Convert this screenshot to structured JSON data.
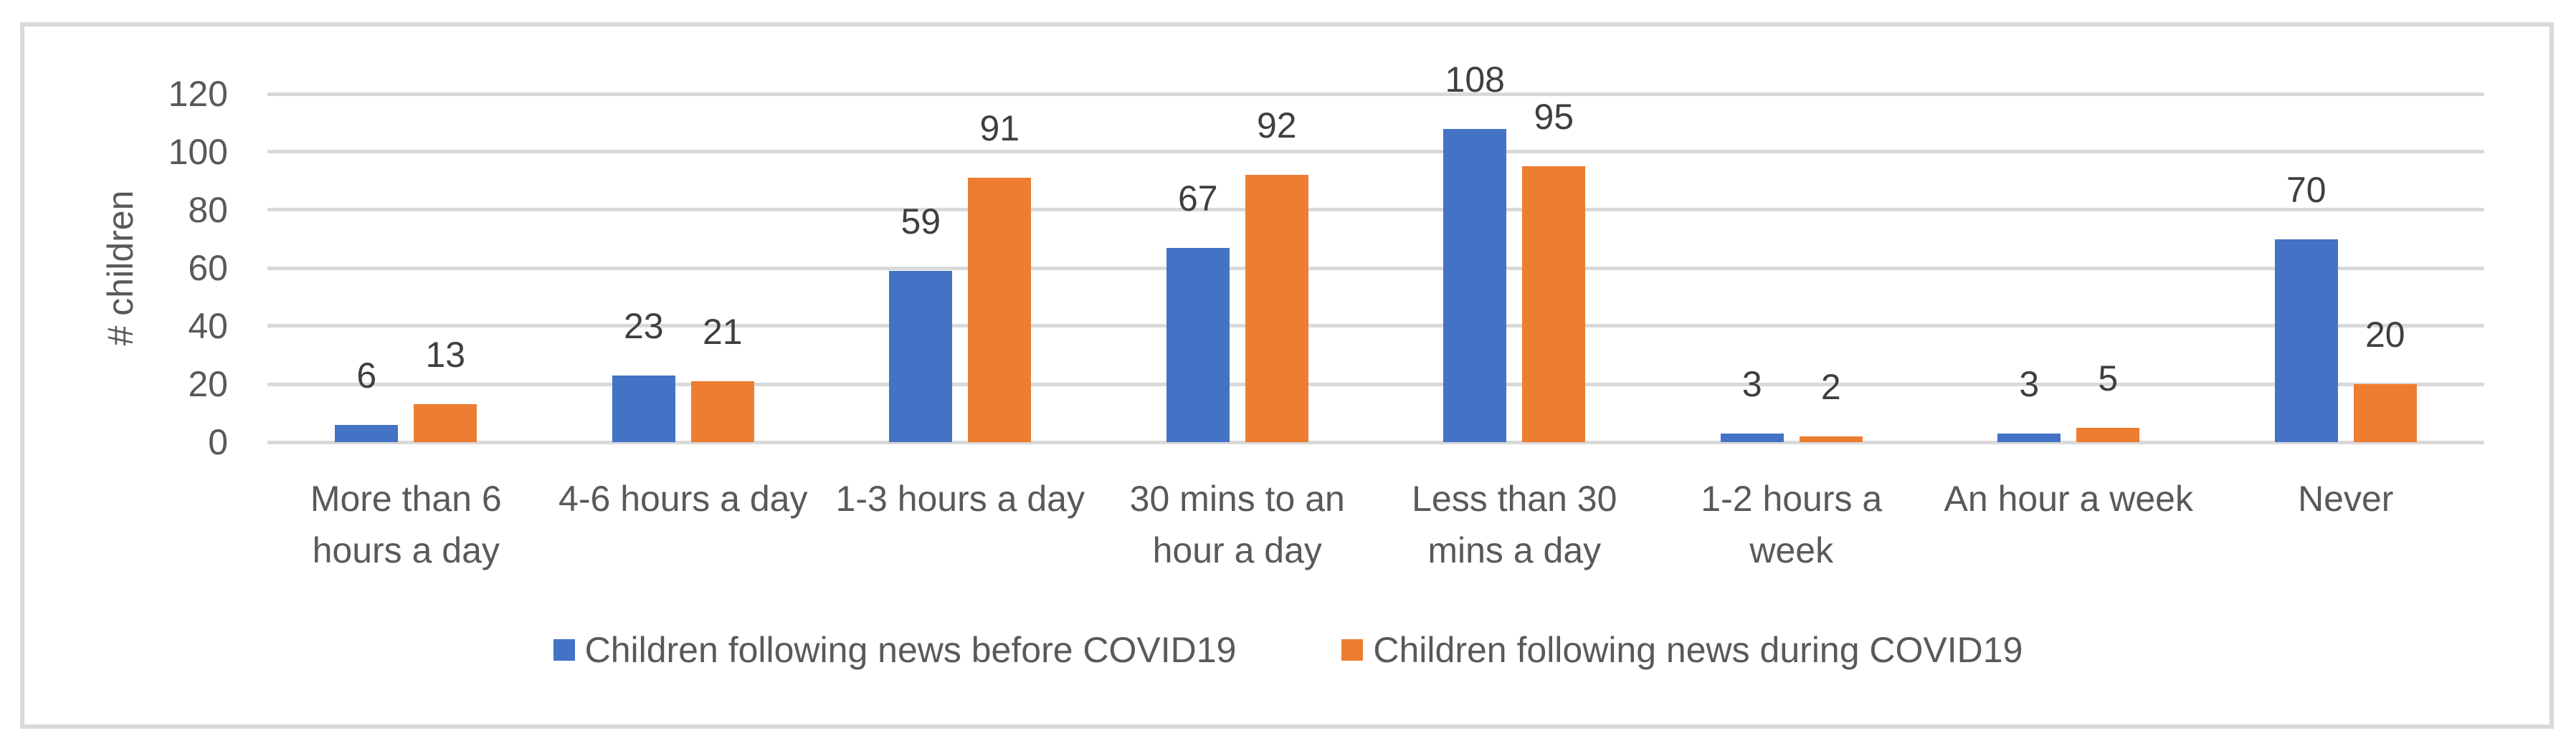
{
  "colors": {
    "series_before": "#4472C4",
    "series_during": "#ED7D31",
    "gridline": "#D9D9D9",
    "border": "#D9D9D9",
    "axis_text": "#595959",
    "data_label_text": "#3F3F3F",
    "background": "#FFFFFF"
  },
  "chart_data": {
    "type": "bar",
    "title": "",
    "xlabel": "",
    "ylabel": "# children",
    "ylim": [
      0,
      120
    ],
    "yticks": [
      0,
      20,
      40,
      60,
      80,
      100,
      120
    ],
    "grid": "horizontal",
    "legend_position": "bottom",
    "data_labels": "outside-end",
    "categories": [
      "More than 6\nhours a day",
      "4-6 hours a day",
      "1-3 hours a day",
      "30 mins to an\nhour a day",
      "Less than 30\nmins a day",
      "1-2 hours a\nweek",
      "An hour a week",
      "Never"
    ],
    "series": [
      {
        "name": "Children following news before COVID19",
        "color": "#4472C4",
        "values": [
          6,
          23,
          59,
          67,
          108,
          3,
          3,
          70
        ]
      },
      {
        "name": "Children following news during COVID19",
        "color": "#ED7D31",
        "values": [
          13,
          21,
          91,
          92,
          95,
          2,
          5,
          20
        ]
      }
    ]
  }
}
